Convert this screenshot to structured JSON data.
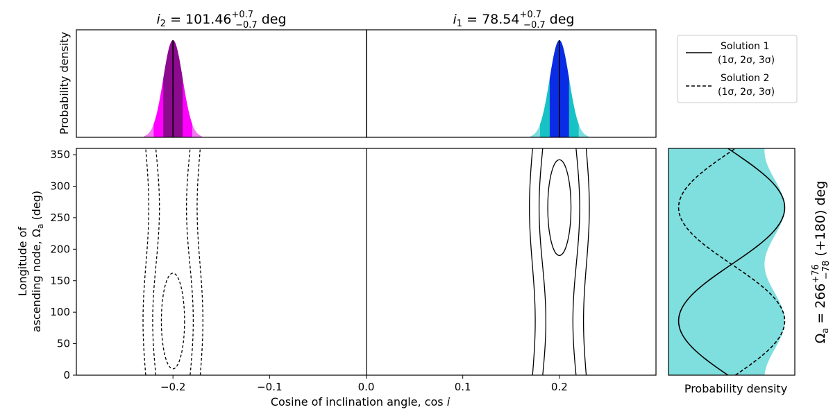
{
  "chart_data": [
    {
      "type": "area",
      "panel": "top-left",
      "title_var": "i",
      "title_sub": "2",
      "title_value": "101.46",
      "title_upper": "+0.7",
      "title_lower": "−0.7",
      "title_unit": "deg",
      "ylabel": "Probability density",
      "center": -0.2,
      "sigma": 0.01,
      "xlim": [
        -0.3,
        0.0
      ],
      "colors": {
        "core": "#8b0a8e",
        "mid": "#ff00ff",
        "outer": "#f07af0"
      }
    },
    {
      "type": "area",
      "panel": "top-right",
      "title_var": "i",
      "title_sub": "1",
      "title_value": "78.54",
      "title_upper": "+0.7",
      "title_lower": "−0.7",
      "title_unit": "deg",
      "center": 0.2,
      "sigma": 0.01,
      "xlim": [
        0.0,
        0.3
      ],
      "colors": {
        "core": "#0a2ce6",
        "mid": "#16c2c4",
        "outer": "#7ddedf"
      }
    },
    {
      "type": "line",
      "panel": "bottom-main",
      "xlabel_text": "Cosine of inclination angle, cos",
      "xlabel_var": "i",
      "ylabel_line1": "Longitude of",
      "ylabel_line2_text": "ascending node, Ω",
      "ylabel_line2_sub": "a",
      "ylabel_line2_unit": "(deg)",
      "xlim": [
        -0.3,
        0.3
      ],
      "ylim": [
        0,
        360
      ],
      "xticks": [
        -0.2,
        -0.1,
        0.0,
        0.1,
        0.2
      ],
      "xtick_labels": [
        "−0.2",
        "−0.1",
        "0.0",
        "0.1",
        "0.2"
      ],
      "yticks": [
        0,
        50,
        100,
        150,
        200,
        250,
        300,
        350
      ],
      "ytick_labels": [
        "0",
        "50",
        "100",
        "150",
        "200",
        "250",
        "300",
        "350"
      ],
      "solution1_contours": {
        "inner_ellipse": {
          "cx": 0.2,
          "cy": 266,
          "rx": 0.012,
          "ry": 76
        },
        "sigma2": {
          "center": 0.2,
          "halfwidth_min": 0.014,
          "halfwidth_max": 0.021
        },
        "sigma3": {
          "center": 0.2,
          "halfwidth_min": 0.025,
          "halfwidth_max": 0.031
        }
      },
      "solution2_contours": {
        "inner_ellipse": {
          "cx": -0.2,
          "cy": 86,
          "rx": 0.012,
          "ry": 76
        },
        "sigma2": {
          "center": -0.2,
          "halfwidth_min": 0.014,
          "halfwidth_max": 0.021
        },
        "sigma3": {
          "center": -0.2,
          "halfwidth_min": 0.025,
          "halfwidth_max": 0.031
        }
      }
    },
    {
      "type": "line",
      "panel": "bottom-side",
      "xlabel": "Probability density",
      "right_label_prefix": "Ω",
      "right_label_sub": "a",
      "right_label_value": "= 266",
      "right_label_upper": "+76",
      "right_label_lower": "−78",
      "right_label_suffix": "(+180) deg",
      "ylim": [
        0,
        360
      ],
      "fill_color": "#7fdede",
      "solution1_peak": 266,
      "solution2_peak": 86
    }
  ],
  "legend": {
    "items": [
      {
        "label": "Solution 1",
        "sub": "(1σ, 2σ, 3σ)",
        "style": "solid"
      },
      {
        "label": "Solution 2",
        "sub": "(1σ, 2σ, 3σ)",
        "style": "dashed"
      }
    ]
  }
}
